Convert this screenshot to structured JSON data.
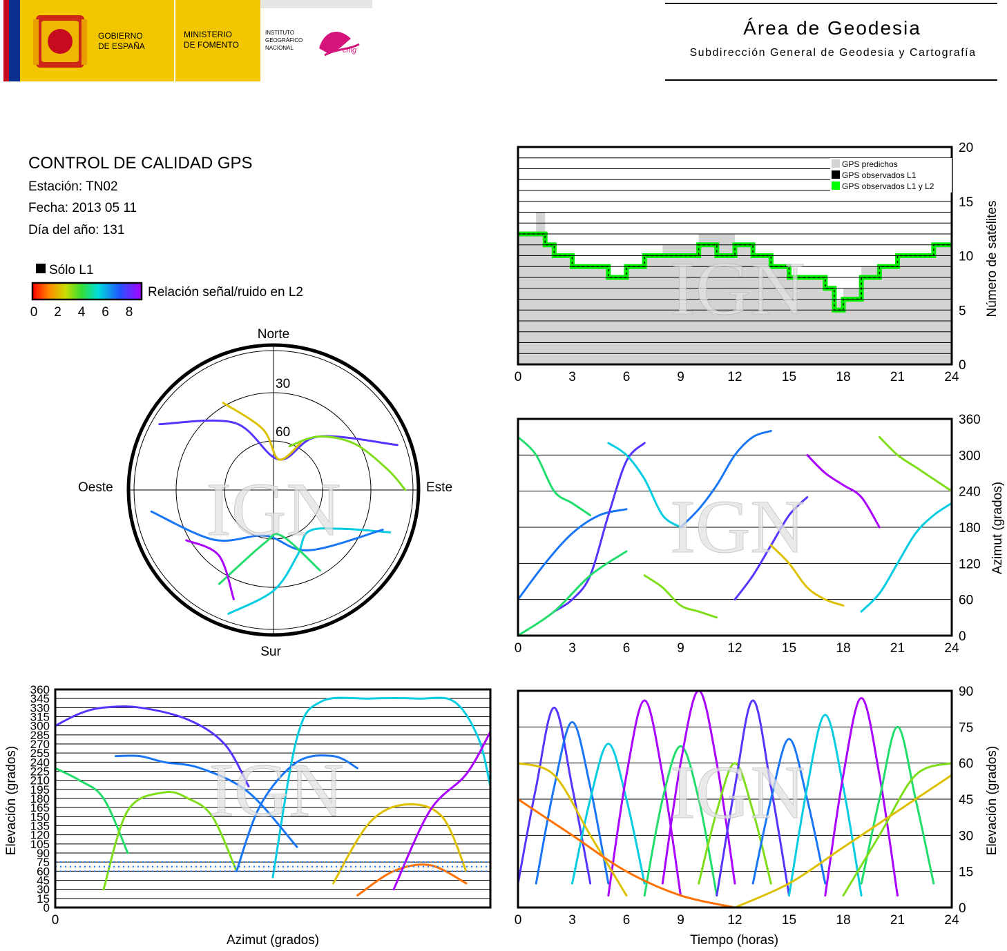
{
  "header": {
    "gov_line1": "GOBIERNO",
    "gov_line2": "DE ESPAÑA",
    "min_line1": "MINISTERIO",
    "min_line2": "DE FOMENTO",
    "ign_line1": "INSTITUTO",
    "ign_line2": "GEOGRÁFICO",
    "ign_line3": "NACIONAL",
    "cnig": "cnig",
    "area_title": "Área de Geodesia",
    "area_subtitle": "Subdirección General de Geodesia y Cartografía",
    "colors": {
      "yellow": "#f3c700",
      "red": "#c60b1e",
      "blue": "#0a2f8f",
      "magenta": "#d4147a"
    }
  },
  "info": {
    "title": "CONTROL DE CALIDAD GPS",
    "station": "Estación: TN02",
    "date": "Fecha: 2013 05 11",
    "doy": "Día del año: 131",
    "l1_only": "Sólo L1",
    "snr_label": "Relación señal/ruido en L2",
    "snr_ticks": [
      "0",
      "2",
      "4",
      "6",
      "8"
    ]
  },
  "watermark": "IGN",
  "chart_data": [
    {
      "id": "satellite-count",
      "type": "area",
      "ylabel": "Número de satélites",
      "xlim": [
        0,
        24
      ],
      "ylim": [
        0,
        20
      ],
      "x_ticks": [
        "0",
        "3",
        "6",
        "9",
        "12",
        "15",
        "18",
        "21",
        "24"
      ],
      "y_ticks": [
        "0",
        "5",
        "10",
        "15",
        "20"
      ],
      "grid": true,
      "legend_position": "top-right",
      "legend": [
        {
          "name": "GPS predichos",
          "color": "#d3d3d3"
        },
        {
          "name": "GPS observados L1",
          "color": "#000000"
        },
        {
          "name": "GPS observados L1 y L2",
          "color": "#00ff00"
        }
      ],
      "x": [
        0,
        1,
        1.5,
        2,
        3,
        4,
        5,
        6,
        7,
        8,
        9,
        10,
        11,
        12,
        13,
        14,
        15,
        16,
        17,
        17.5,
        18,
        19,
        20,
        21,
        22,
        23,
        24
      ],
      "series": [
        {
          "name": "GPS predichos",
          "values": [
            12,
            14,
            11,
            10,
            9,
            9,
            8,
            9,
            10,
            11,
            11,
            12,
            12,
            11,
            10,
            9,
            8,
            8,
            7,
            6,
            7,
            9,
            9,
            10,
            10,
            11,
            12
          ]
        },
        {
          "name": "GPS observados L1 y L2",
          "values": [
            12,
            12,
            11,
            10,
            9,
            9,
            8,
            9,
            10,
            10,
            10,
            11,
            10,
            11,
            10,
            9,
            8,
            8,
            7,
            5,
            6,
            8,
            9,
            10,
            10,
            11,
            11
          ]
        }
      ]
    },
    {
      "id": "skyplot",
      "type": "scatter",
      "direction_labels": {
        "north": "Norte",
        "south": "Sur",
        "east": "Este",
        "west": "Oeste"
      },
      "ring_labels": [
        "30",
        "60"
      ],
      "tracks": [
        {
          "az": [
            200,
            180,
            160,
            140,
            120,
            110
          ],
          "el": [
            5,
            25,
            45,
            55,
            40,
            10
          ],
          "snr": 5
        },
        {
          "az": [
            260,
            230,
            190,
            150,
            110
          ],
          "el": [
            10,
            40,
            60,
            45,
            15
          ],
          "snr": 6
        },
        {
          "az": [
            300,
            330,
            10,
            40,
            70
          ],
          "el": [
            5,
            40,
            70,
            45,
            5
          ],
          "snr": 7
        },
        {
          "az": [
            20,
            40,
            60,
            80,
            90
          ],
          "el": [
            60,
            45,
            30,
            15,
            5
          ],
          "snr": 3
        },
        {
          "az": [
            150,
            170,
            190,
            210
          ],
          "el": [
            30,
            60,
            55,
            20
          ],
          "snr": 4
        },
        {
          "az": [
            330,
            350,
            10,
            30
          ],
          "el": [
            25,
            50,
            70,
            55
          ],
          "snr": 2
        },
        {
          "az": [
            240,
            220,
            200
          ],
          "el": [
            25,
            35,
            15
          ],
          "snr": 8
        }
      ]
    },
    {
      "id": "azimuth-vs-time",
      "type": "line",
      "ylabel": "Azimut (grados)",
      "xlim": [
        0,
        24
      ],
      "ylim": [
        0,
        360
      ],
      "x_ticks": [
        "0",
        "3",
        "6",
        "9",
        "12",
        "15",
        "18",
        "21",
        "24"
      ],
      "y_ticks": [
        "0",
        "60",
        "120",
        "180",
        "240",
        "300",
        "360"
      ],
      "grid": true,
      "tracks": [
        {
          "t": [
            0,
            1,
            2,
            3,
            4
          ],
          "az": [
            330,
            300,
            240,
            220,
            200
          ],
          "snr": 4
        },
        {
          "t": [
            0,
            1.5,
            3,
            4.5,
            6
          ],
          "az": [
            60,
            120,
            170,
            200,
            210
          ],
          "snr": 6
        },
        {
          "t": [
            2,
            3,
            4,
            5,
            6,
            7
          ],
          "az": [
            40,
            60,
            100,
            200,
            290,
            320
          ],
          "snr": 7
        },
        {
          "t": [
            5,
            6,
            7,
            8,
            9
          ],
          "az": [
            320,
            300,
            260,
            200,
            180
          ],
          "snr": 5
        },
        {
          "t": [
            7,
            8,
            9,
            10,
            11
          ],
          "az": [
            100,
            80,
            50,
            40,
            30
          ],
          "snr": 3
        },
        {
          "t": [
            9,
            10,
            11,
            12,
            13,
            14
          ],
          "az": [
            180,
            210,
            250,
            300,
            330,
            340
          ],
          "snr": 6
        },
        {
          "t": [
            12,
            13,
            14,
            15,
            16
          ],
          "az": [
            60,
            100,
            150,
            200,
            230
          ],
          "snr": 7
        },
        {
          "t": [
            14,
            15,
            16,
            17,
            18
          ],
          "az": [
            150,
            120,
            80,
            60,
            50
          ],
          "snr": 2
        },
        {
          "t": [
            16,
            17,
            18,
            19,
            20
          ],
          "az": [
            300,
            270,
            250,
            230,
            180
          ],
          "snr": 8
        },
        {
          "t": [
            19,
            20,
            21,
            22,
            23,
            24
          ],
          "az": [
            40,
            70,
            120,
            170,
            200,
            220
          ],
          "snr": 5
        },
        {
          "t": [
            20,
            21,
            22,
            23,
            24
          ],
          "az": [
            330,
            300,
            280,
            260,
            240
          ],
          "snr": 3
        },
        {
          "t": [
            0,
            2,
            4,
            6
          ],
          "az": [
            0,
            40,
            100,
            140
          ],
          "snr": 4
        }
      ]
    },
    {
      "id": "elevation-vs-azimuth",
      "type": "line",
      "xlabel": "Azimut (grados)",
      "ylabel": "Elevación (grados)",
      "xlim": [
        0,
        360
      ],
      "ylim": [
        0,
        360
      ],
      "x_ticks": [
        "0"
      ],
      "y_ticks": [
        "0",
        "15",
        "30",
        "45",
        "60",
        "75",
        "90",
        "105",
        "120",
        "135",
        "150",
        "165",
        "180",
        "195",
        "210",
        "225",
        "240",
        "255",
        "270",
        "285",
        "300",
        "315",
        "330",
        "345",
        "360"
      ],
      "grid": true,
      "tracks": [
        {
          "az": [
            0,
            20,
            40,
            70,
            110,
            140,
            160
          ],
          "el": [
            300,
            320,
            330,
            330,
            310,
            270,
            200
          ],
          "snr": 7
        },
        {
          "az": [
            180,
            200,
            220,
            260,
            300,
            330,
            350,
            360
          ],
          "el": [
            50,
            280,
            340,
            345,
            345,
            340,
            280,
            200
          ],
          "snr": 5
        },
        {
          "az": [
            0,
            20,
            40,
            60
          ],
          "el": [
            230,
            210,
            180,
            90
          ],
          "snr": 4
        },
        {
          "az": [
            40,
            60,
            90,
            110,
            130,
            150
          ],
          "el": [
            30,
            160,
            190,
            180,
            150,
            60
          ],
          "snr": 3
        },
        {
          "az": [
            150,
            170,
            200,
            230,
            250
          ],
          "el": [
            60,
            170,
            240,
            250,
            230
          ],
          "snr": 6
        },
        {
          "az": [
            230,
            260,
            290,
            320,
            340
          ],
          "el": [
            40,
            140,
            170,
            150,
            60
          ],
          "snr": 2
        },
        {
          "az": [
            250,
            280,
            310,
            340
          ],
          "el": [
            20,
            60,
            70,
            40
          ],
          "snr": 1
        },
        {
          "az": [
            280,
            310,
            340,
            360
          ],
          "el": [
            30,
            160,
            220,
            290
          ],
          "snr": 8
        },
        {
          "az": [
            50,
            70,
            90,
            120,
            160,
            200
          ],
          "el": [
            250,
            250,
            240,
            230,
            190,
            100
          ],
          "snr": 6
        }
      ],
      "low_band": {
        "el": [
          60,
          75
        ],
        "snr": 6
      }
    },
    {
      "id": "elevation-vs-time",
      "type": "line",
      "xlabel": "Tiempo (horas)",
      "ylabel": "Elevación (grados)",
      "xlim": [
        0,
        24
      ],
      "ylim": [
        0,
        90
      ],
      "x_ticks": [
        "0",
        "3",
        "6",
        "9",
        "12",
        "15",
        "18",
        "21",
        "24"
      ],
      "y_ticks": [
        "0",
        "15",
        "30",
        "45",
        "60",
        "75",
        "90"
      ],
      "grid": true,
      "tracks": [
        {
          "t": [
            0,
            1,
            2,
            3,
            4
          ],
          "el": [
            10,
            50,
            83,
            50,
            10
          ],
          "snr": 7
        },
        {
          "t": [
            1,
            2,
            3,
            4,
            5
          ],
          "el": [
            10,
            50,
            77,
            50,
            10
          ],
          "snr": 6
        },
        {
          "t": [
            3,
            4,
            5,
            6,
            7
          ],
          "el": [
            10,
            45,
            68,
            45,
            10
          ],
          "snr": 5
        },
        {
          "t": [
            5,
            6,
            7,
            8,
            9
          ],
          "el": [
            5,
            55,
            86,
            55,
            5
          ],
          "snr": 8
        },
        {
          "t": [
            7,
            8,
            9,
            10,
            11
          ],
          "el": [
            5,
            45,
            67,
            45,
            5
          ],
          "snr": 4
        },
        {
          "t": [
            8,
            9,
            10,
            11,
            12
          ],
          "el": [
            10,
            60,
            90,
            60,
            10
          ],
          "snr": 8
        },
        {
          "t": [
            10,
            11,
            12,
            13,
            14
          ],
          "el": [
            10,
            40,
            60,
            40,
            10
          ],
          "snr": 3
        },
        {
          "t": [
            11,
            12,
            13,
            14,
            15
          ],
          "el": [
            5,
            50,
            86,
            50,
            5
          ],
          "snr": 7
        },
        {
          "t": [
            13,
            14,
            15,
            16,
            17
          ],
          "el": [
            10,
            45,
            70,
            45,
            10
          ],
          "snr": 6
        },
        {
          "t": [
            15,
            16,
            17,
            18,
            19
          ],
          "el": [
            5,
            50,
            80,
            50,
            5
          ],
          "snr": 5
        },
        {
          "t": [
            17,
            18,
            19,
            20,
            21
          ],
          "el": [
            5,
            55,
            87,
            55,
            5
          ],
          "snr": 8
        },
        {
          "t": [
            19,
            20,
            21,
            22,
            23
          ],
          "el": [
            10,
            45,
            75,
            45,
            10
          ],
          "snr": 4
        },
        {
          "t": [
            0,
            2,
            4,
            6
          ],
          "el": [
            60,
            55,
            30,
            5
          ],
          "snr": 2
        },
        {
          "t": [
            18,
            20,
            22,
            24
          ],
          "el": [
            5,
            30,
            55,
            60
          ],
          "snr": 3
        },
        {
          "t": [
            0,
            3,
            6,
            9,
            12
          ],
          "el": [
            45,
            30,
            15,
            5,
            0
          ],
          "snr": 1
        },
        {
          "t": [
            12,
            15,
            18,
            21,
            24
          ],
          "el": [
            0,
            10,
            25,
            40,
            55
          ],
          "snr": 2
        }
      ]
    }
  ]
}
